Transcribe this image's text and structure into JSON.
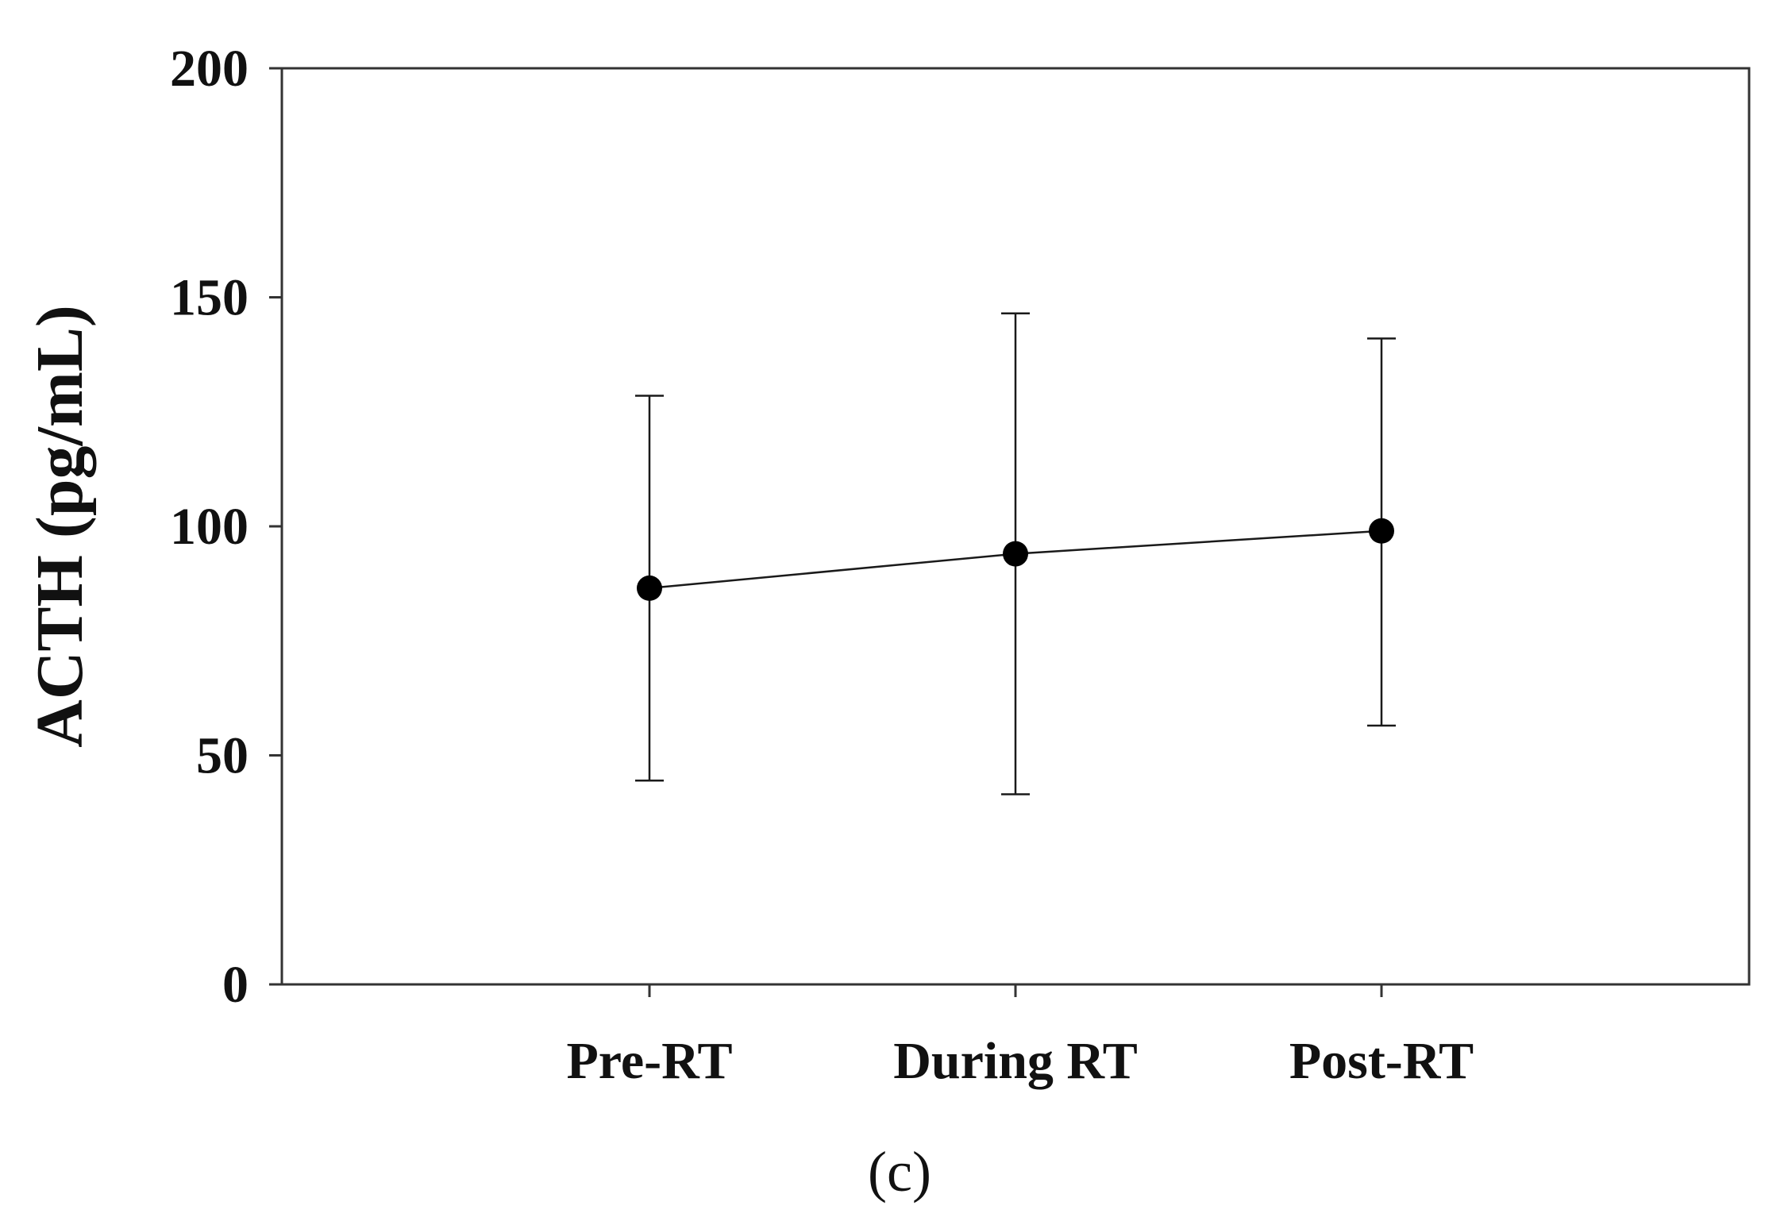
{
  "chart_data": {
    "type": "line",
    "title": "",
    "xlabel": "",
    "ylabel": "ACTH (pg/mL)",
    "caption": "(c)",
    "categories": [
      "Pre-RT",
      "During RT",
      "Post-RT"
    ],
    "series": [
      {
        "name": "ACTH",
        "values": [
          86.5,
          94,
          99
        ],
        "error_low": [
          44.5,
          41.5,
          56.5
        ],
        "error_high": [
          128.5,
          146.5,
          141
        ]
      }
    ],
    "ylim": [
      0,
      200
    ],
    "yticks": [
      0,
      50,
      100,
      150,
      200
    ],
    "grid": false
  },
  "colors": {
    "line": "#1a1a1a",
    "axis": "#333333",
    "marker": "#000000"
  }
}
